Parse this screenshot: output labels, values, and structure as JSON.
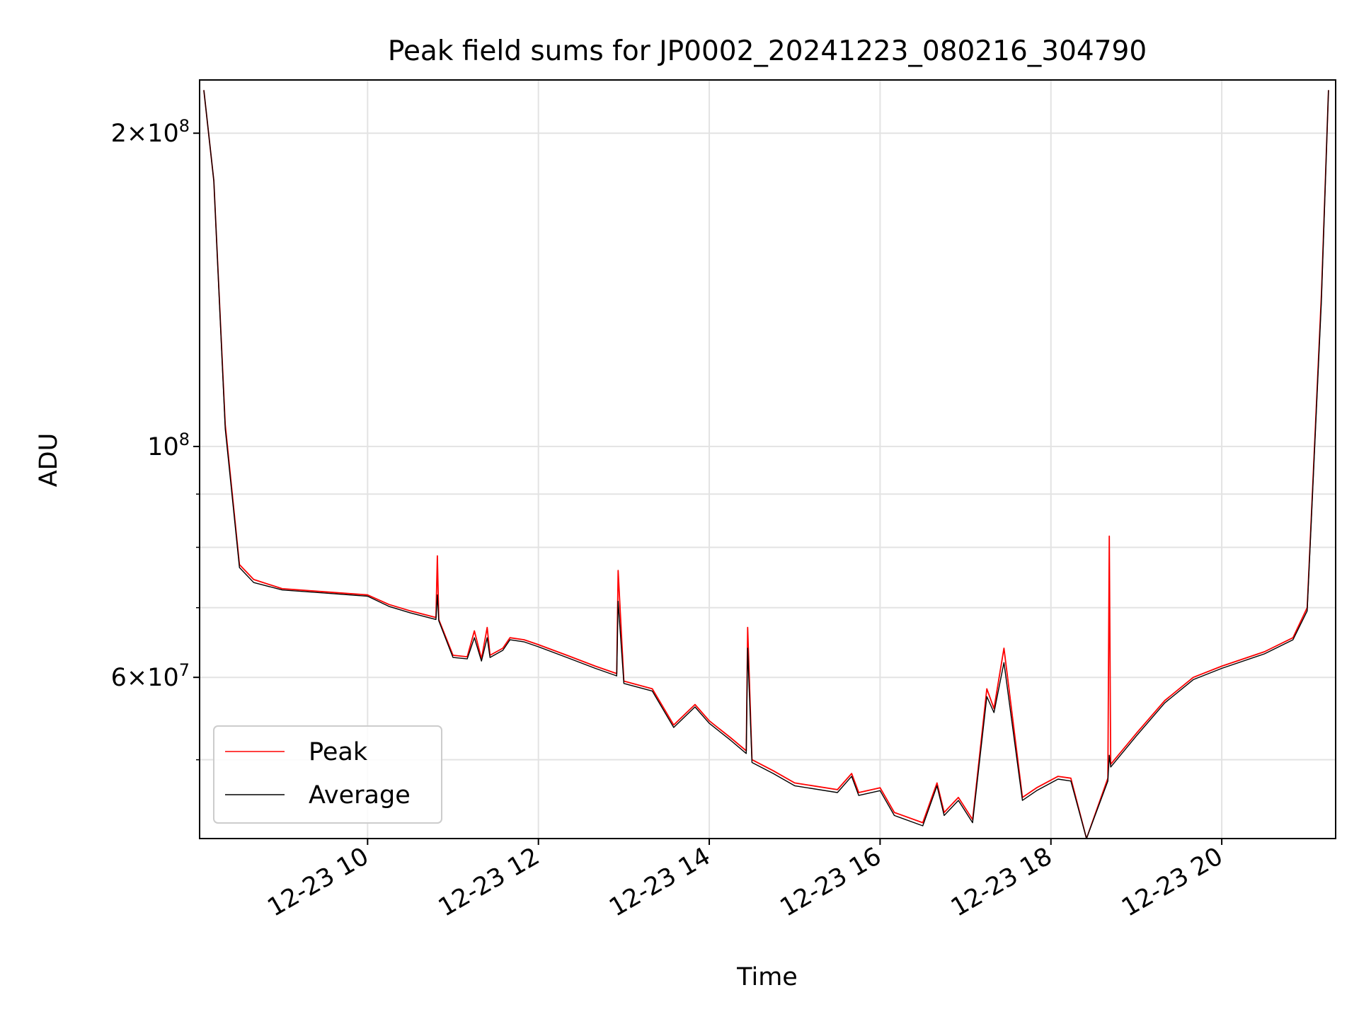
{
  "chart_data": {
    "type": "line",
    "title": "Peak field sums for JP0002_20241223_080216_304790",
    "xlabel": "Time",
    "ylabel": "ADU",
    "yscale": "log",
    "ylim": [
      42000000,
      225000000
    ],
    "xlim": [
      "12-23 08:02",
      "12-23 21:20"
    ],
    "grid": true,
    "legend_position": "lower-left",
    "x_tick_labels": [
      "12-23 10",
      "12-23 12",
      "12-23 14",
      "12-23 16",
      "12-23 18",
      "12-23 20"
    ],
    "y_tick_labels": [
      {
        "base": "2",
        "mult": "×",
        "pow": "10",
        "exp": "8",
        "value": 200000000
      },
      {
        "base": "",
        "mult": "",
        "pow": "10",
        "exp": "8",
        "value": 100000000
      },
      {
        "base": "6",
        "mult": "×",
        "pow": "10",
        "exp": "7",
        "value": 60000000
      }
    ],
    "series": [
      {
        "name": "Peak",
        "color": "#ff0000",
        "x": [
          "12-23 08:05",
          "12-23 08:12",
          "12-23 08:20",
          "12-23 08:30",
          "12-23 08:40",
          "12-23 09:00",
          "12-23 09:30",
          "12-23 10:00",
          "12-23 10:15",
          "12-23 10:30",
          "12-23 10:48",
          "12-23 10:49",
          "12-23 10:50",
          "12-23 11:00",
          "12-23 11:10",
          "12-23 11:15",
          "12-23 11:20",
          "12-23 11:24",
          "12-23 11:26",
          "12-23 11:35",
          "12-23 11:40",
          "12-23 11:50",
          "12-23 12:00",
          "12-23 12:20",
          "12-23 12:40",
          "12-23 12:55",
          "12-23 12:56",
          "12-23 13:00",
          "12-23 13:20",
          "12-23 13:35",
          "12-23 13:50",
          "12-23 14:00",
          "12-23 14:15",
          "12-23 14:26",
          "12-23 14:27",
          "12-23 14:30",
          "12-23 14:45",
          "12-23 15:00",
          "12-23 15:30",
          "12-23 15:40",
          "12-23 15:45",
          "12-23 16:00",
          "12-23 16:10",
          "12-23 16:30",
          "12-23 16:40",
          "12-23 16:45",
          "12-23 16:55",
          "12-23 17:05",
          "12-23 17:15",
          "12-23 17:20",
          "12-23 17:27",
          "12-23 17:40",
          "12-23 17:50",
          "12-23 18:05",
          "12-23 18:14",
          "12-23 18:25",
          "12-23 18:40",
          "12-23 18:41",
          "12-23 18:42",
          "12-23 19:00",
          "12-23 19:20",
          "12-23 19:40",
          "12-23 20:00",
          "12-23 20:30",
          "12-23 20:50",
          "12-23 21:00",
          "12-23 21:10",
          "12-23 21:15"
        ],
        "y": [
          220000000,
          180000000,
          105000000,
          77000000,
          74500000,
          73000000,
          72500000,
          72000000,
          70500000,
          69500000,
          68500000,
          78500000,
          68200000,
          63000000,
          62800000,
          66500000,
          62500000,
          67000000,
          63000000,
          64000000,
          65500000,
          65200000,
          64500000,
          63000000,
          61500000,
          60500000,
          76000000,
          59500000,
          58500000,
          54000000,
          56500000,
          54500000,
          52500000,
          51000000,
          67000000,
          50000000,
          48800000,
          47500000,
          46800000,
          48500000,
          46500000,
          47000000,
          44500000,
          43500000,
          47500000,
          44500000,
          46000000,
          43800000,
          58500000,
          56000000,
          64000000,
          46000000,
          47000000,
          48200000,
          48000000,
          42000000,
          48000000,
          82000000,
          49500000,
          53000000,
          57000000,
          60000000,
          61500000,
          63500000,
          65500000,
          70000000,
          140000000,
          220000000
        ]
      },
      {
        "name": "Average",
        "color": "#000000",
        "x": [
          "12-23 08:05",
          "12-23 08:12",
          "12-23 08:20",
          "12-23 08:30",
          "12-23 08:40",
          "12-23 09:00",
          "12-23 09:30",
          "12-23 10:00",
          "12-23 10:15",
          "12-23 10:30",
          "12-23 10:48",
          "12-23 10:49",
          "12-23 10:50",
          "12-23 11:00",
          "12-23 11:10",
          "12-23 11:15",
          "12-23 11:20",
          "12-23 11:24",
          "12-23 11:26",
          "12-23 11:35",
          "12-23 11:40",
          "12-23 11:50",
          "12-23 12:00",
          "12-23 12:20",
          "12-23 12:40",
          "12-23 12:55",
          "12-23 12:56",
          "12-23 13:00",
          "12-23 13:20",
          "12-23 13:35",
          "12-23 13:50",
          "12-23 14:00",
          "12-23 14:15",
          "12-23 14:26",
          "12-23 14:27",
          "12-23 14:30",
          "12-23 14:45",
          "12-23 15:00",
          "12-23 15:30",
          "12-23 15:40",
          "12-23 15:45",
          "12-23 16:00",
          "12-23 16:10",
          "12-23 16:30",
          "12-23 16:40",
          "12-23 16:45",
          "12-23 16:55",
          "12-23 17:05",
          "12-23 17:15",
          "12-23 17:20",
          "12-23 17:27",
          "12-23 17:40",
          "12-23 17:50",
          "12-23 18:05",
          "12-23 18:14",
          "12-23 18:25",
          "12-23 18:40",
          "12-23 18:41",
          "12-23 18:42",
          "12-23 19:00",
          "12-23 19:20",
          "12-23 19:40",
          "12-23 20:00",
          "12-23 20:30",
          "12-23 20:50",
          "12-23 21:00",
          "12-23 21:10",
          "12-23 21:15"
        ],
        "y": [
          220000000,
          180000000,
          104000000,
          76500000,
          74000000,
          72800000,
          72300000,
          71800000,
          70200000,
          69200000,
          68200000,
          72000000,
          68000000,
          62700000,
          62500000,
          65500000,
          62200000,
          65500000,
          62700000,
          63700000,
          65200000,
          64900000,
          64200000,
          62700000,
          61200000,
          60200000,
          71000000,
          59200000,
          58200000,
          53700000,
          56200000,
          54200000,
          52200000,
          50700000,
          64000000,
          49700000,
          48500000,
          47200000,
          46500000,
          48200000,
          46200000,
          46700000,
          44200000,
          43200000,
          47200000,
          44200000,
          45700000,
          43500000,
          57500000,
          55500000,
          62000000,
          45700000,
          46700000,
          47900000,
          47700000,
          42000000,
          47700000,
          50500000,
          49200000,
          52700000,
          56700000,
          59700000,
          61200000,
          63200000,
          65200000,
          69500000,
          138000000,
          220000000
        ]
      }
    ]
  }
}
